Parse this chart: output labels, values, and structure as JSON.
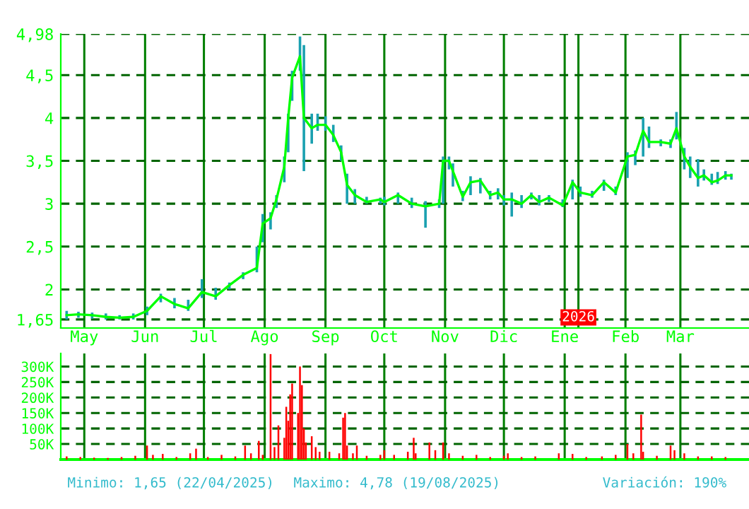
{
  "chart_data": [
    {
      "type": "line",
      "x": [
        "2025-04-22",
        "2025-04-28",
        "2025-05-05",
        "2025-05-12",
        "2025-05-19",
        "2025-05-26",
        "2025-06-02",
        "2025-06-09",
        "2025-06-16",
        "2025-06-23",
        "2025-06-30",
        "2025-07-07",
        "2025-07-14",
        "2025-07-21",
        "2025-07-28",
        "2025-07-31",
        "2025-08-04",
        "2025-08-07",
        "2025-08-11",
        "2025-08-13",
        "2025-08-15",
        "2025-08-19",
        "2025-08-21",
        "2025-08-25",
        "2025-08-28",
        "2025-09-01",
        "2025-09-05",
        "2025-09-09",
        "2025-09-12",
        "2025-09-16",
        "2025-09-22",
        "2025-09-29",
        "2025-10-01",
        "2025-10-08",
        "2025-10-15",
        "2025-10-22",
        "2025-10-29",
        "2025-10-31",
        "2025-11-03",
        "2025-11-05",
        "2025-11-10",
        "2025-11-14",
        "2025-11-19",
        "2025-11-24",
        "2025-11-28",
        "2025-12-01",
        "2025-12-05",
        "2025-12-10",
        "2025-12-15",
        "2025-12-19",
        "2025-12-24",
        "2025-12-31",
        "2026-01-05",
        "2026-01-09",
        "2026-01-15",
        "2026-01-21",
        "2026-01-27",
        "2026-02-02",
        "2026-02-06",
        "2026-02-10",
        "2026-02-13",
        "2026-02-19",
        "2026-02-24",
        "2026-02-27",
        "2026-03-03",
        "2026-03-06",
        "2026-03-10",
        "2026-03-13",
        "2026-03-17",
        "2026-03-20",
        "2026-03-24",
        "2026-03-27"
      ],
      "series": [
        {
          "color": "#00ff00",
          "values": [
            1.7,
            1.71,
            1.7,
            1.68,
            1.67,
            1.68,
            1.75,
            1.92,
            1.83,
            1.78,
            1.97,
            1.92,
            2.05,
            2.17,
            2.25,
            2.77,
            2.83,
            3.05,
            3.43,
            4.0,
            4.47,
            4.72,
            4.0,
            3.88,
            3.92,
            3.92,
            3.8,
            3.6,
            3.22,
            3.1,
            3.02,
            3.05,
            3.02,
            3.1,
            3.0,
            2.97,
            3.0,
            3.5,
            3.5,
            3.38,
            3.08,
            3.25,
            3.27,
            3.1,
            3.13,
            3.05,
            3.05,
            3.0,
            3.1,
            3.02,
            3.07,
            2.98,
            3.25,
            3.13,
            3.1,
            3.25,
            3.13,
            3.55,
            3.57,
            3.85,
            3.72,
            3.72,
            3.7,
            3.88,
            3.55,
            3.43,
            3.3,
            3.33,
            3.25,
            3.27,
            3.33,
            3.33
          ],
          "errors": [
            [
              1.65,
              1.75
            ],
            [
              1.67,
              1.74
            ],
            [
              1.66,
              1.73
            ],
            [
              1.65,
              1.72
            ],
            [
              1.65,
              1.7
            ],
            [
              1.65,
              1.72
            ],
            [
              1.7,
              1.8
            ],
            [
              1.85,
              1.95
            ],
            [
              1.78,
              1.9
            ],
            [
              1.75,
              1.88
            ],
            [
              1.9,
              2.12
            ],
            [
              1.88,
              2.02
            ],
            [
              2.0,
              2.08
            ],
            [
              2.12,
              2.2
            ],
            [
              2.2,
              2.5
            ],
            [
              2.55,
              2.88
            ],
            [
              2.7,
              2.9
            ],
            [
              2.95,
              3.1
            ],
            [
              3.25,
              3.55
            ],
            [
              3.6,
              4.05
            ],
            [
              4.2,
              4.55
            ],
            [
              4.55,
              4.95
            ],
            [
              3.38,
              4.85
            ],
            [
              3.7,
              4.05
            ],
            [
              3.85,
              4.05
            ],
            [
              3.85,
              4.02
            ],
            [
              3.72,
              3.92
            ],
            [
              3.5,
              3.68
            ],
            [
              3.0,
              3.35
            ],
            [
              3.0,
              3.17
            ],
            [
              3.0,
              3.08
            ],
            [
              3.0,
              3.07
            ],
            [
              2.98,
              3.08
            ],
            [
              3.0,
              3.13
            ],
            [
              2.95,
              3.07
            ],
            [
              2.72,
              3.03
            ],
            [
              2.95,
              3.05
            ],
            [
              3.0,
              3.55
            ],
            [
              3.4,
              3.55
            ],
            [
              3.2,
              3.47
            ],
            [
              3.03,
              3.15
            ],
            [
              3.1,
              3.32
            ],
            [
              3.12,
              3.3
            ],
            [
              3.05,
              3.15
            ],
            [
              3.05,
              3.18
            ],
            [
              2.98,
              3.1
            ],
            [
              2.85,
              3.13
            ],
            [
              2.95,
              3.1
            ],
            [
              3.05,
              3.13
            ],
            [
              2.98,
              3.1
            ],
            [
              3.02,
              3.1
            ],
            [
              2.96,
              3.05
            ],
            [
              3.05,
              3.28
            ],
            [
              3.08,
              3.2
            ],
            [
              3.07,
              3.15
            ],
            [
              3.15,
              3.28
            ],
            [
              3.1,
              3.2
            ],
            [
              3.3,
              3.6
            ],
            [
              3.45,
              3.62
            ],
            [
              3.55,
              4.0
            ],
            [
              3.65,
              3.9
            ],
            [
              3.67,
              3.75
            ],
            [
              3.65,
              3.75
            ],
            [
              3.75,
              4.07
            ],
            [
              3.4,
              3.65
            ],
            [
              3.3,
              3.55
            ],
            [
              3.2,
              3.52
            ],
            [
              3.27,
              3.4
            ],
            [
              3.22,
              3.35
            ],
            [
              3.23,
              3.37
            ],
            [
              3.28,
              3.38
            ],
            [
              3.28,
              3.35
            ]
          ]
        }
      ],
      "xlim": [
        "2025-04-19",
        "2026-04-05"
      ],
      "xticks": [
        {
          "value": "2025-05-01",
          "label": "May"
        },
        {
          "value": "2025-06-01",
          "label": "Jun"
        },
        {
          "value": "2025-07-01",
          "label": "Jul"
        },
        {
          "value": "2025-08-01",
          "label": "Ago"
        },
        {
          "value": "2025-09-01",
          "label": "Sep"
        },
        {
          "value": "2025-10-01",
          "label": "Oct"
        },
        {
          "value": "2025-11-01",
          "label": "Nov"
        },
        {
          "value": "2025-12-01",
          "label": "Dic"
        },
        {
          "value": "2026-01-01",
          "label": "Ene"
        },
        {
          "value": "2026-02-01",
          "label": "Feb"
        },
        {
          "value": "2026-03-01",
          "label": "Mar"
        }
      ],
      "ylim": [
        1.55,
        4.98
      ],
      "yticks": [
        {
          "value": 1.65,
          "label": "1,65"
        },
        2,
        {
          "value": 2.5,
          "label": "2,5"
        },
        3,
        {
          "value": 3.5,
          "label": "3,5"
        },
        4,
        {
          "value": 4.5,
          "label": "4,5"
        },
        {
          "value": 4.98,
          "label": "4,98"
        }
      ],
      "ref_lines": [
        {
          "axis": "x",
          "value": "2026-01-08",
          "label": "2026",
          "color": "#008000"
        }
      ],
      "grid": true
    },
    {
      "type": "bar",
      "x": [
        "2025-04-22",
        "2025-04-29",
        "2025-05-06",
        "2025-05-13",
        "2025-05-20",
        "2025-05-27",
        "2025-06-02",
        "2025-06-05",
        "2025-06-10",
        "2025-06-17",
        "2025-06-24",
        "2025-06-27",
        "2025-07-03",
        "2025-07-10",
        "2025-07-17",
        "2025-07-22",
        "2025-07-25",
        "2025-07-29",
        "2025-07-31",
        "2025-08-04",
        "2025-08-06",
        "2025-08-08",
        "2025-08-11",
        "2025-08-12",
        "2025-08-13",
        "2025-08-14",
        "2025-08-15",
        "2025-08-18",
        "2025-08-19",
        "2025-08-20",
        "2025-08-21",
        "2025-08-22",
        "2025-08-25",
        "2025-08-27",
        "2025-08-29",
        "2025-09-03",
        "2025-09-08",
        "2025-09-10",
        "2025-09-11",
        "2025-09-12",
        "2025-09-15",
        "2025-09-17",
        "2025-09-22",
        "2025-09-29",
        "2025-10-01",
        "2025-10-06",
        "2025-10-13",
        "2025-10-16",
        "2025-10-17",
        "2025-10-24",
        "2025-10-27",
        "2025-10-31",
        "2025-11-03",
        "2025-11-10",
        "2025-11-17",
        "2025-11-24",
        "2025-12-01",
        "2025-12-03",
        "2025-12-10",
        "2025-12-17",
        "2025-12-29",
        "2026-01-05",
        "2026-01-12",
        "2026-01-20",
        "2026-01-27",
        "2026-02-02",
        "2026-02-05",
        "2026-02-09",
        "2026-02-10",
        "2026-02-17",
        "2026-02-24",
        "2026-02-26",
        "2026-03-03",
        "2026-03-10",
        "2026-03-17",
        "2026-03-24"
      ],
      "series": [
        {
          "color": "#ff0000",
          "values": [
            10000,
            8000,
            6000,
            5000,
            8000,
            12000,
            45000,
            15000,
            18000,
            8000,
            20000,
            35000,
            8000,
            15000,
            10000,
            45000,
            20000,
            60000,
            15000,
            340000,
            40000,
            110000,
            70000,
            170000,
            125000,
            210000,
            245000,
            150000,
            300000,
            240000,
            100000,
            55000,
            75000,
            40000,
            25000,
            25000,
            20000,
            135000,
            150000,
            45000,
            20000,
            45000,
            12000,
            15000,
            30000,
            15000,
            25000,
            70000,
            20000,
            55000,
            30000,
            55000,
            20000,
            12000,
            15000,
            8000,
            12000,
            20000,
            8000,
            10000,
            20000,
            18000,
            8000,
            10000,
            15000,
            50000,
            20000,
            145000,
            25000,
            12000,
            45000,
            30000,
            20000,
            10000,
            10000,
            8000
          ]
        }
      ],
      "xlim": [
        "2025-04-19",
        "2026-04-05"
      ],
      "xticks": [
        {
          "value": "2025-05-01",
          "label": null
        },
        {
          "value": "2025-06-01",
          "label": null
        },
        {
          "value": "2025-07-01",
          "label": null
        },
        {
          "value": "2025-08-01",
          "label": null
        },
        {
          "value": "2025-09-01",
          "label": null
        },
        {
          "value": "2025-10-01",
          "label": null
        },
        {
          "value": "2025-11-01",
          "label": null
        },
        {
          "value": "2025-12-01",
          "label": null
        },
        {
          "value": "2026-01-01",
          "label": null
        },
        {
          "value": "2026-02-01",
          "label": null
        },
        {
          "value": "2026-03-01",
          "label": null
        }
      ],
      "tick_labels": "y",
      "ylim": [
        0,
        342000
      ],
      "yticks": [
        {
          "value": 50000,
          "label": "50K"
        },
        {
          "value": 100000,
          "label": "100K"
        },
        {
          "value": 150000,
          "label": "150K"
        },
        {
          "value": 200000,
          "label": "200K"
        },
        {
          "value": 250000,
          "label": "250K"
        },
        {
          "value": 300000,
          "label": "300K"
        }
      ],
      "grid": true,
      "annotations": [
        "Minimo: 1,65 (22/04/2025)",
        "Maximo: 4,78 (19/08/2025)",
        "Variación: 190%"
      ]
    }
  ]
}
